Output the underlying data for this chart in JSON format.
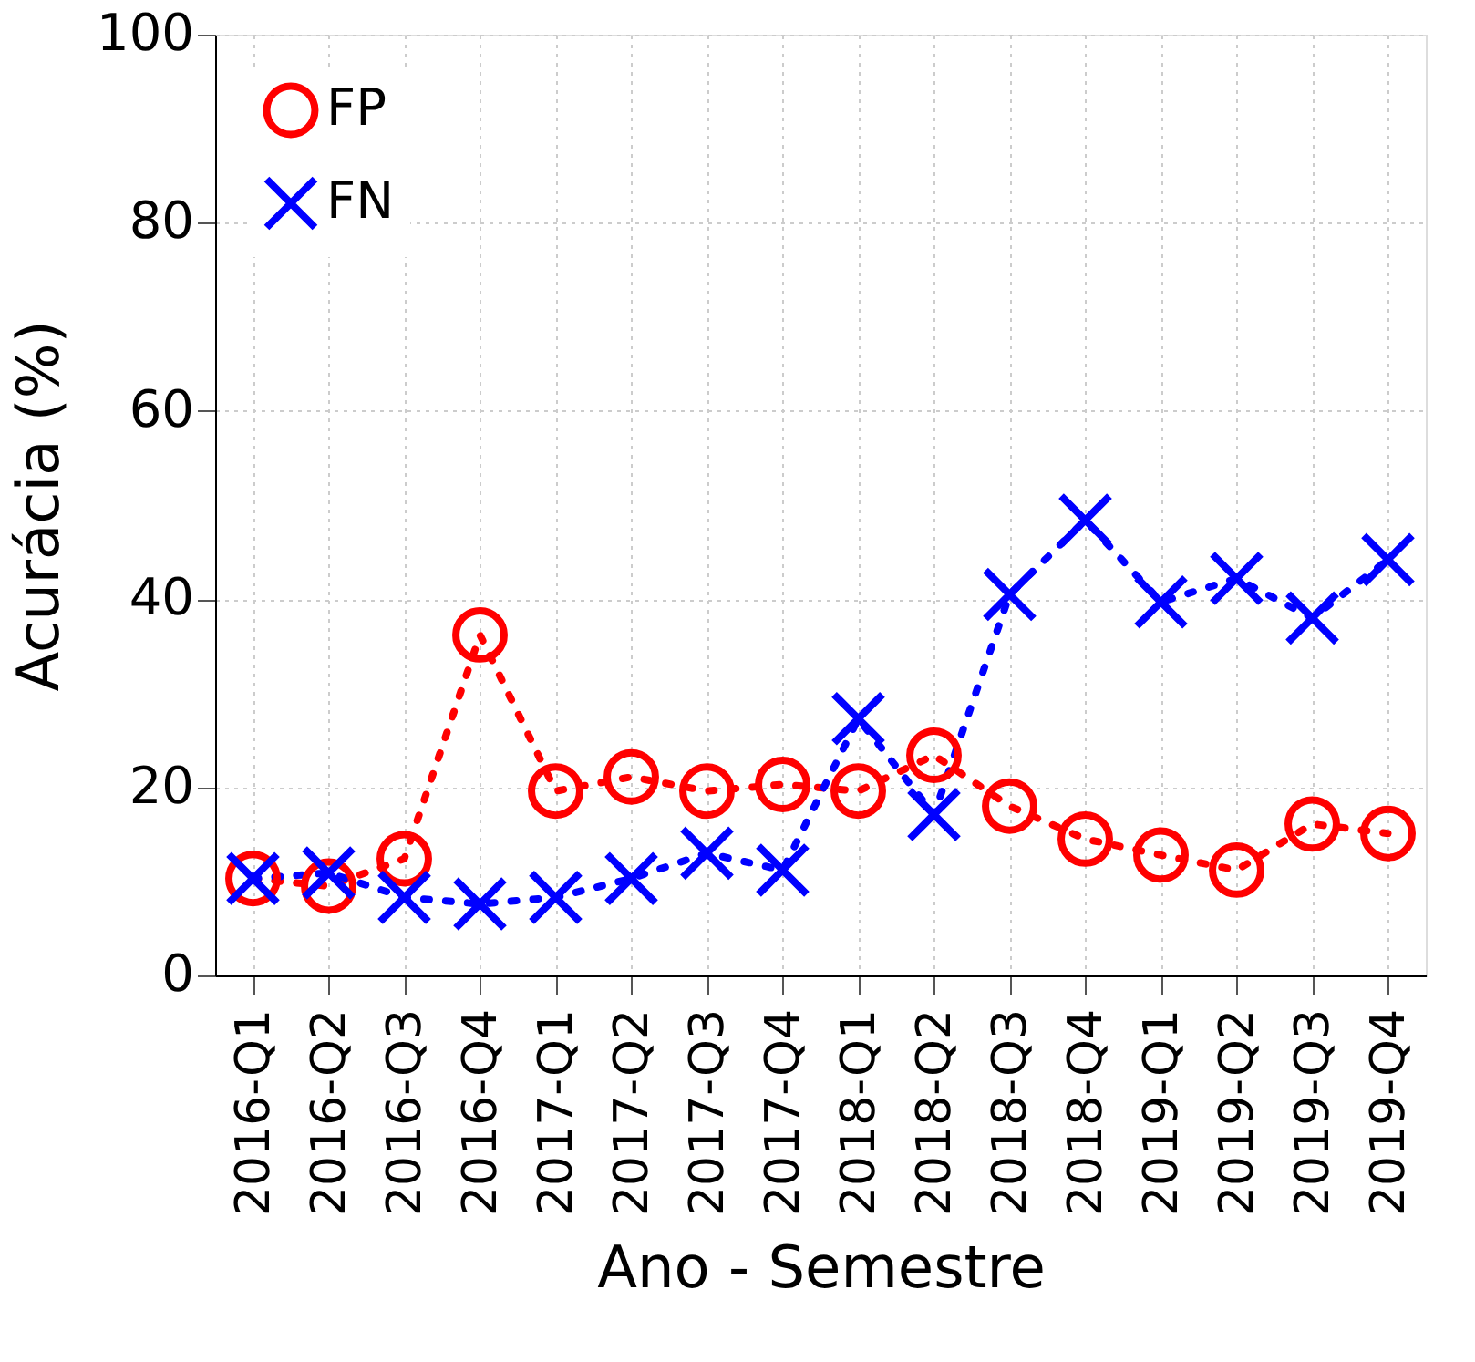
{
  "chart_data": {
    "type": "line",
    "xlabel": "Ano - Semestre",
    "ylabel": "Acurácia (%)",
    "categories": [
      "2016-Q1",
      "2016-Q2",
      "2016-Q3",
      "2016-Q4",
      "2017-Q1",
      "2017-Q2",
      "2017-Q3",
      "2017-Q4",
      "2018-Q1",
      "2018-Q2",
      "2018-Q3",
      "2018-Q4",
      "2019-Q1",
      "2019-Q2",
      "2019-Q3",
      "2019-Q4"
    ],
    "series": [
      {
        "name": "FP",
        "color": "#ff0000",
        "marker": "circle",
        "values": [
          10.3,
          9.5,
          12.4,
          36.2,
          19.6,
          21.1,
          19.6,
          20.3,
          19.6,
          23.4,
          18.0,
          14.5,
          12.8,
          11.2,
          16.1,
          15.1
        ]
      },
      {
        "name": "FN",
        "color": "#0000ff",
        "marker": "cross",
        "values": [
          10.3,
          10.9,
          8.3,
          7.6,
          8.3,
          10.3,
          13.0,
          11.2,
          27.3,
          17.1,
          40.5,
          48.4,
          39.7,
          42.2,
          38.0,
          44.2
        ]
      }
    ],
    "ylim": [
      0,
      100
    ],
    "yticks": [
      0,
      20,
      40,
      60,
      80,
      100
    ],
    "grid": true,
    "legend": "top left",
    "line_style": "dotted"
  }
}
